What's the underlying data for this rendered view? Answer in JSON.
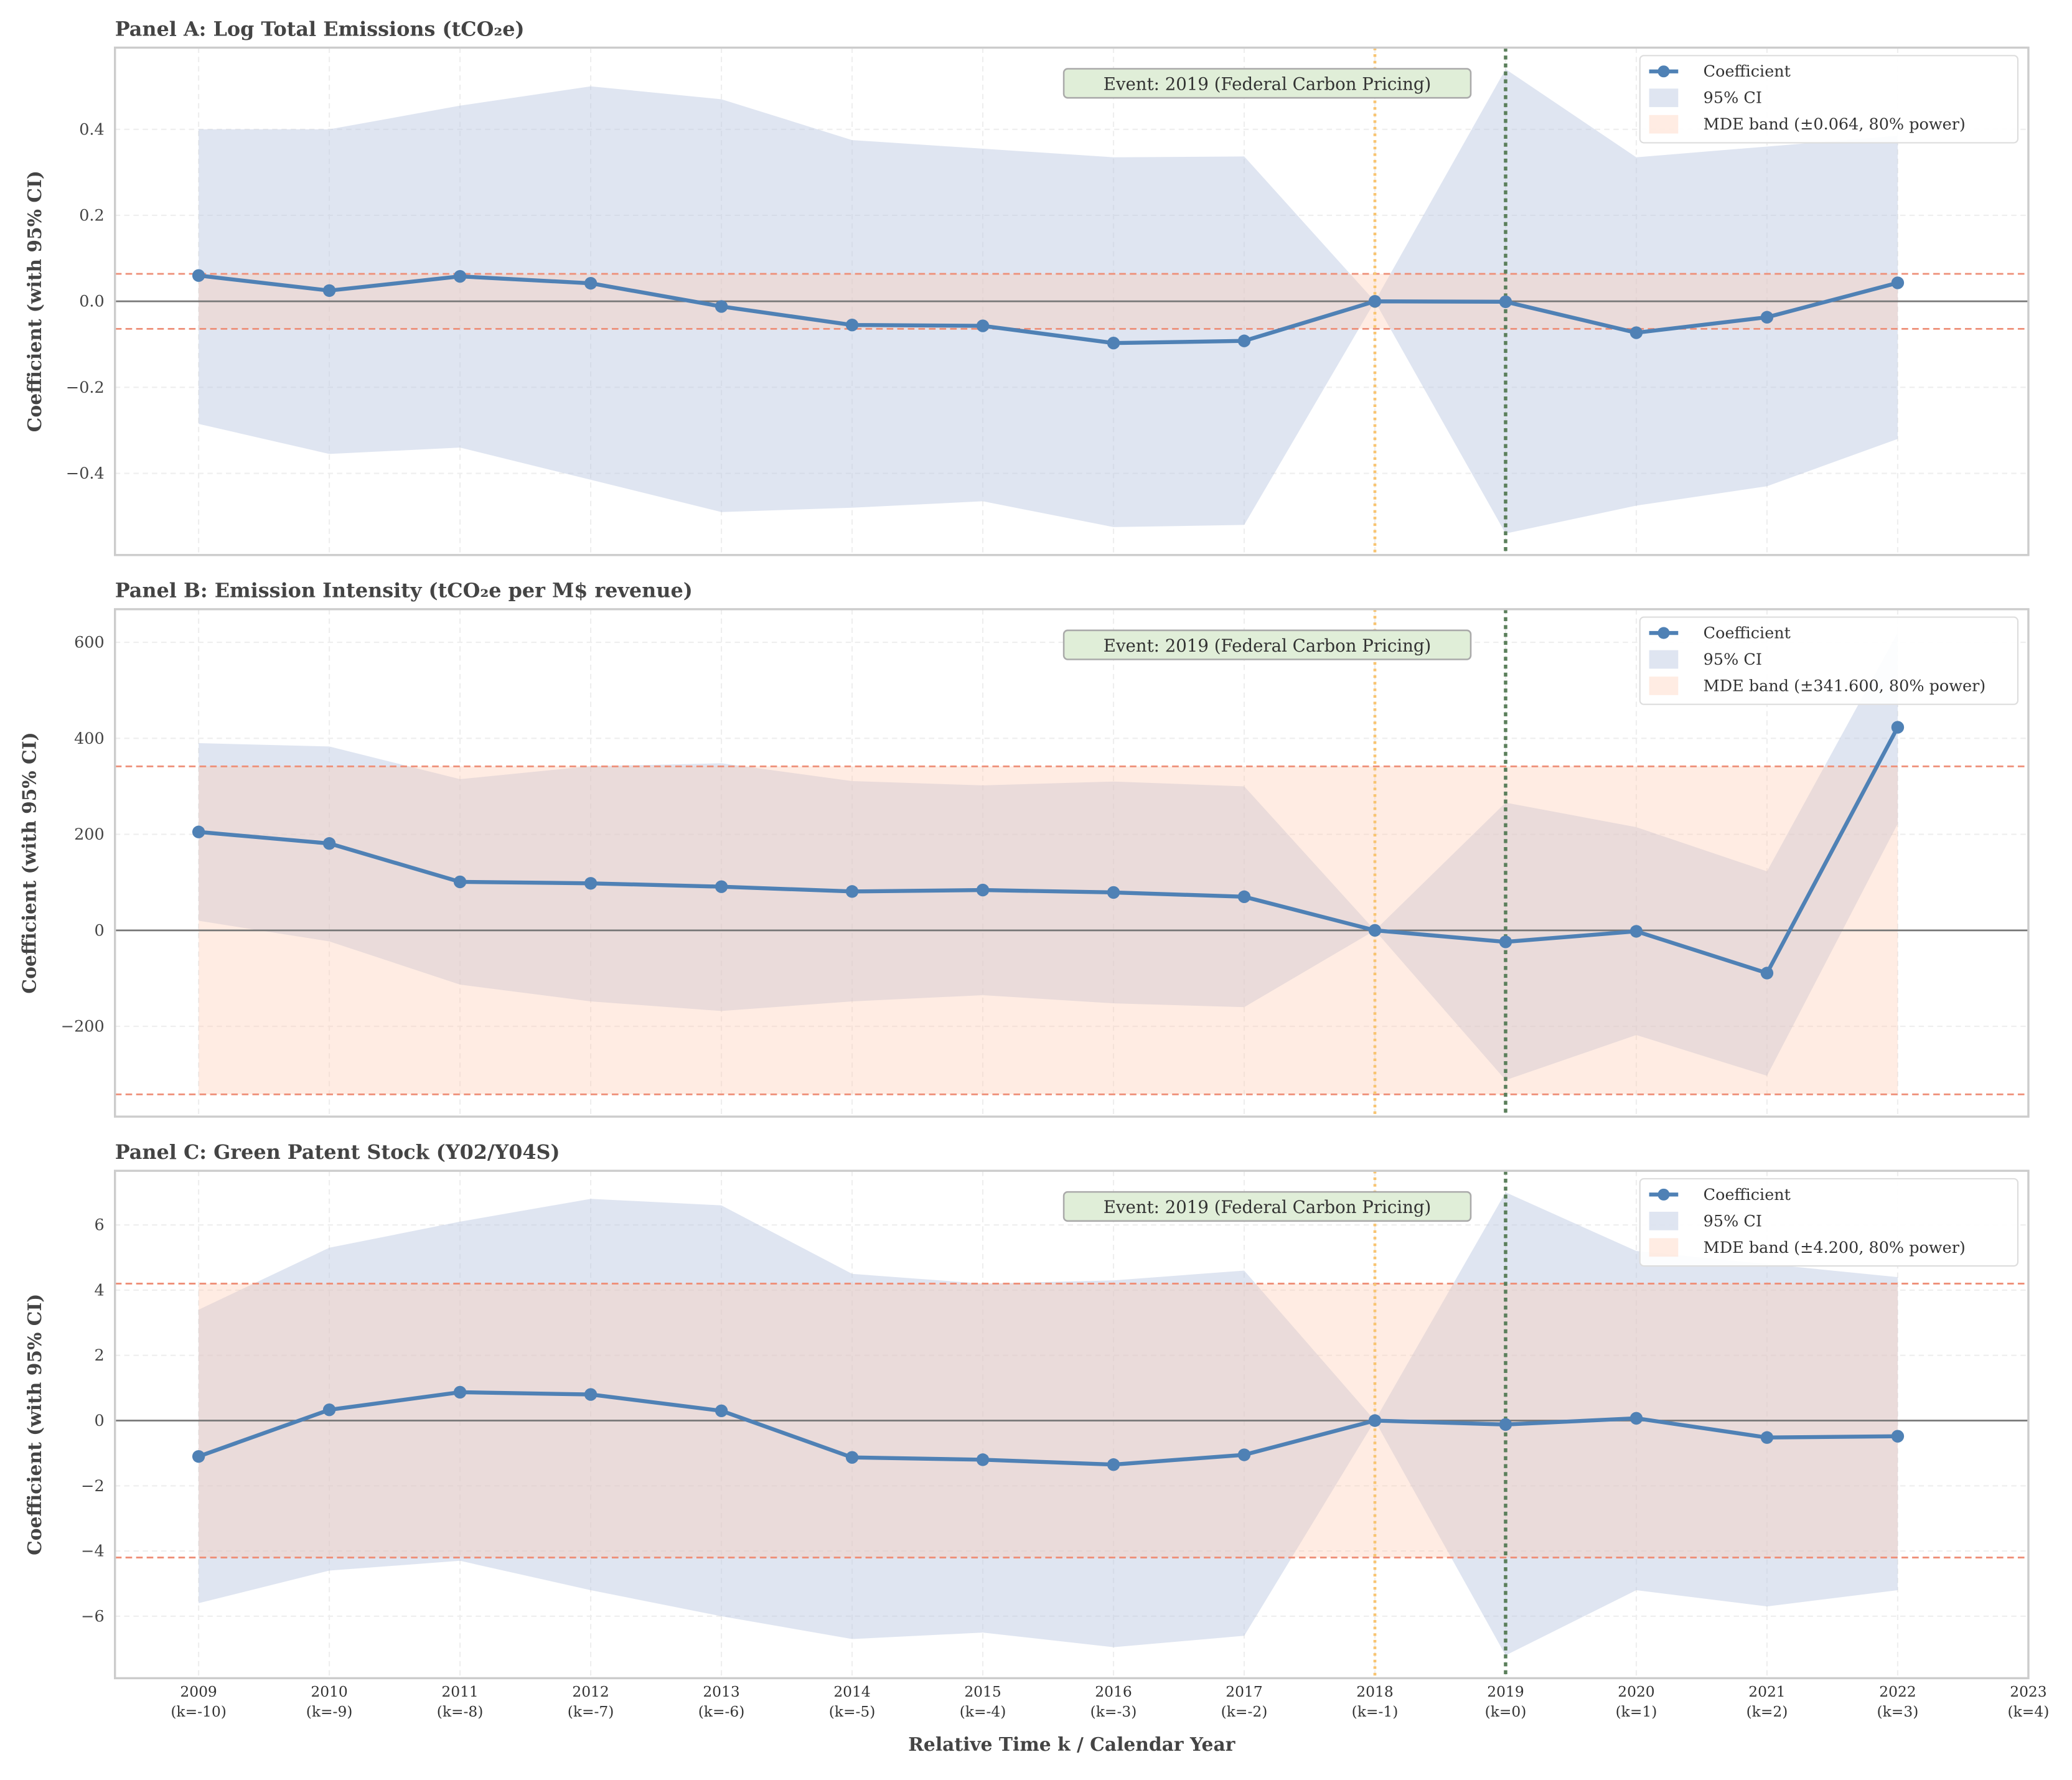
{
  "colors": {
    "coefficient": "#4f81b5",
    "ci_fill": "#b9c6e0",
    "mde_fill": "#ffc8ae",
    "mde_line": "#ee8f78",
    "zero_line": "#777777",
    "reference_line": "#f8c471",
    "event_line": "#5b7f5b",
    "event_box_fill": "#e0eed8",
    "frame": "#cccccc"
  },
  "figure": {
    "xlabel": "Relative Time k / Calendar Year",
    "xlim": [
      2008.36,
      2023
    ],
    "x_ticks": [
      {
        "value": 2009,
        "year": "2009",
        "k": "(k=-10)"
      },
      {
        "value": 2010,
        "year": "2010",
        "k": "(k=-9)"
      },
      {
        "value": 2011,
        "year": "2011",
        "k": "(k=-8)"
      },
      {
        "value": 2012,
        "year": "2012",
        "k": "(k=-7)"
      },
      {
        "value": 2013,
        "year": "2013",
        "k": "(k=-6)"
      },
      {
        "value": 2014,
        "year": "2014",
        "k": "(k=-5)"
      },
      {
        "value": 2015,
        "year": "2015",
        "k": "(k=-4)"
      },
      {
        "value": 2016,
        "year": "2016",
        "k": "(k=-3)"
      },
      {
        "value": 2017,
        "year": "2017",
        "k": "(k=-2)"
      },
      {
        "value": 2018,
        "year": "2018",
        "k": "(k=-1)"
      },
      {
        "value": 2019,
        "year": "2019",
        "k": "(k=0)"
      },
      {
        "value": 2020,
        "year": "2020",
        "k": "(k=1)"
      },
      {
        "value": 2021,
        "year": "2021",
        "k": "(k=2)"
      },
      {
        "value": 2022,
        "year": "2022",
        "k": "(k=3)"
      },
      {
        "value": 2023,
        "year": "2023",
        "k": "(k=4)"
      }
    ]
  },
  "chart_data": [
    {
      "type": "line",
      "title": "Panel A: Log Total Emissions (tCO₂e)",
      "ylabel": "Coefficient (with 95% CI)",
      "x": [
        2009,
        2010,
        2011,
        2012,
        2013,
        2014,
        2015,
        2016,
        2017,
        2018,
        2019,
        2020,
        2021,
        2022
      ],
      "coefficient": [
        0.06,
        0.025,
        0.058,
        0.042,
        -0.012,
        -0.055,
        -0.057,
        -0.097,
        -0.092,
        0.0,
        -0.001,
        -0.073,
        -0.037,
        0.043
      ],
      "ci_upper": [
        0.4,
        0.4,
        0.455,
        0.5,
        0.47,
        0.375,
        0.355,
        0.335,
        0.337,
        0.0,
        0.54,
        0.335,
        0.36,
        0.385
      ],
      "ci_lower": [
        -0.285,
        -0.355,
        -0.34,
        -0.415,
        -0.49,
        -0.48,
        -0.465,
        -0.525,
        -0.52,
        0.0,
        -0.54,
        -0.475,
        -0.43,
        -0.32
      ],
      "mde": 0.064,
      "ylim": [
        -0.59,
        0.59
      ],
      "yticks": [
        {
          "value": -0.4,
          "label": "−0.4"
        },
        {
          "value": -0.2,
          "label": "−0.2"
        },
        {
          "value": 0,
          "label": "0.0"
        },
        {
          "value": 0.2,
          "label": "0.2"
        },
        {
          "value": 0.4,
          "label": "0.4"
        }
      ],
      "reference_year": 2018,
      "event_year": 2019,
      "event_label": "Event: 2019 (Federal Carbon Pricing)",
      "legend": {
        "coefficient": "Coefficient",
        "ci": "95% CI",
        "mde": "MDE band (±0.064, 80% power)",
        "position": "top-right"
      }
    },
    {
      "type": "line",
      "title": "Panel B: Emission Intensity (tCO₂e per M$ revenue)",
      "ylabel": "Coefficient (with 95% CI)",
      "x": [
        2009,
        2010,
        2011,
        2012,
        2013,
        2014,
        2015,
        2016,
        2017,
        2018,
        2019,
        2020,
        2021,
        2022
      ],
      "coefficient": [
        205,
        181,
        101,
        98,
        91,
        81,
        84,
        79,
        70,
        0,
        -24,
        -2,
        -89,
        423
      ],
      "ci_upper": [
        390,
        383,
        315,
        342,
        348,
        311,
        302,
        310,
        300,
        0,
        266,
        215,
        123,
        620
      ],
      "ci_lower": [
        20,
        -23,
        -113,
        -148,
        -168,
        -148,
        -135,
        -152,
        -160,
        0,
        -312,
        -218,
        -303,
        222
      ],
      "mde": 341.6,
      "ylim": [
        -388,
        669
      ],
      "yticks": [
        {
          "value": -200,
          "label": "−200"
        },
        {
          "value": 0,
          "label": "0"
        },
        {
          "value": 200,
          "label": "200"
        },
        {
          "value": 400,
          "label": "400"
        },
        {
          "value": 600,
          "label": "600"
        }
      ],
      "reference_year": 2018,
      "event_year": 2019,
      "event_label": "Event: 2019 (Federal Carbon Pricing)",
      "legend": {
        "coefficient": "Coefficient",
        "ci": "95% CI",
        "mde": "MDE band (±341.600, 80% power)",
        "position": "top-right"
      }
    },
    {
      "type": "line",
      "title": "Panel C: Green Patent Stock (Y02/Y04S)",
      "ylabel": "Coefficient (with 95% CI)",
      "x": [
        2009,
        2010,
        2011,
        2012,
        2013,
        2014,
        2015,
        2016,
        2017,
        2018,
        2019,
        2020,
        2021,
        2022
      ],
      "coefficient": [
        -1.1,
        0.33,
        0.87,
        0.8,
        0.3,
        -1.13,
        -1.2,
        -1.35,
        -1.05,
        0.0,
        -0.12,
        0.07,
        -0.52,
        -0.48
      ],
      "ci_upper": [
        3.4,
        5.3,
        6.1,
        6.8,
        6.6,
        4.5,
        4.2,
        4.3,
        4.6,
        0.0,
        7.0,
        5.2,
        4.8,
        4.4
      ],
      "ci_lower": [
        -5.6,
        -4.6,
        -4.3,
        -5.2,
        -6.0,
        -6.7,
        -6.5,
        -6.95,
        -6.6,
        0.0,
        -7.2,
        -5.2,
        -5.7,
        -5.2
      ],
      "mde": 4.2,
      "ylim": [
        -7.9,
        7.66
      ],
      "yticks": [
        {
          "value": -6,
          "label": "−6"
        },
        {
          "value": -4,
          "label": "−4"
        },
        {
          "value": -2,
          "label": "−2"
        },
        {
          "value": 0,
          "label": "0"
        },
        {
          "value": 2,
          "label": "2"
        },
        {
          "value": 4,
          "label": "4"
        },
        {
          "value": 6,
          "label": "6"
        }
      ],
      "reference_year": 2018,
      "event_year": 2019,
      "event_label": "Event: 2019 (Federal Carbon Pricing)",
      "legend": {
        "coefficient": "Coefficient",
        "ci": "95% CI",
        "mde": "MDE band (±4.200, 80% power)",
        "position": "top-right"
      }
    }
  ]
}
